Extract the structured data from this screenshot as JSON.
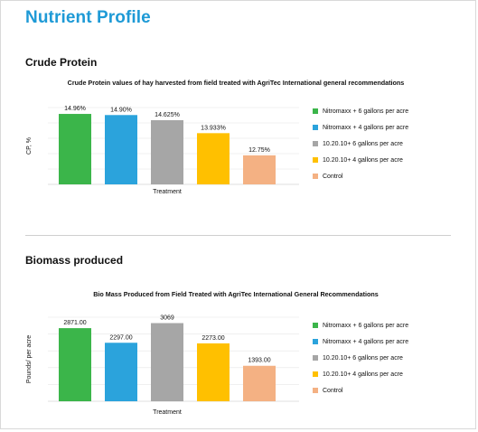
{
  "page": {
    "title": "Nutrient Profile"
  },
  "sections": [
    {
      "heading": "Crude Protein",
      "chart_title": "Crude Protein values of hay harvested from field treated with AgriTec International general recommendations",
      "xlabel": "Treatment",
      "ylabel": "CP, %"
    },
    {
      "heading": "Biomass produced",
      "chart_title": "Bio Mass Produced from Field Treated with AgriTec International General Recommendations",
      "xlabel": "Treatment",
      "ylabel": "Pounds/ per acre"
    }
  ],
  "chart_data": [
    {
      "type": "bar",
      "title": "Crude Protein values of hay harvested from field treated with AgriTec International general recommendations",
      "xlabel": "Treatment",
      "ylabel": "CP, %",
      "categories": [
        "Nitromaxx + 6 gallons per acre",
        "Nitromaxx + 4 gallons per acre",
        "10.20.10+ 6 gallons per acre",
        "10.20.10+ 4 gallons per acre",
        "Control"
      ],
      "values": [
        14.96,
        14.9,
        14.625,
        13.933,
        12.75
      ],
      "data_labels": [
        "14.96%",
        "14.90%",
        "14.625%",
        "13.933%",
        "12.75%"
      ],
      "colors": [
        "#3bb54a",
        "#2ba3dc",
        "#a6a6a6",
        "#ffc000",
        "#f4b183"
      ],
      "ylim": [
        11.2,
        15.3
      ],
      "grid": true,
      "legend": "right"
    },
    {
      "type": "bar",
      "title": "Bio Mass Produced from Field Treated with AgriTec International General Recommendations",
      "xlabel": "Treatment",
      "ylabel": "Pounds/ per acre",
      "categories": [
        "Nitromaxx + 6 gallons per acre",
        "Nitromaxx + 4 gallons per acre",
        "10.20.10+ 6 gallons per acre",
        "10.20.10+ 4 gallons per acre",
        "Control"
      ],
      "values": [
        2871,
        2297,
        3069,
        2273,
        1393
      ],
      "data_labels": [
        "2871.00",
        "2297.00",
        "3069",
        "2273.00",
        "1393.00"
      ],
      "colors": [
        "#3bb54a",
        "#2ba3dc",
        "#a6a6a6",
        "#ffc000",
        "#f4b183"
      ],
      "ylim": [
        0,
        3300
      ],
      "grid": true,
      "legend": "right"
    }
  ]
}
